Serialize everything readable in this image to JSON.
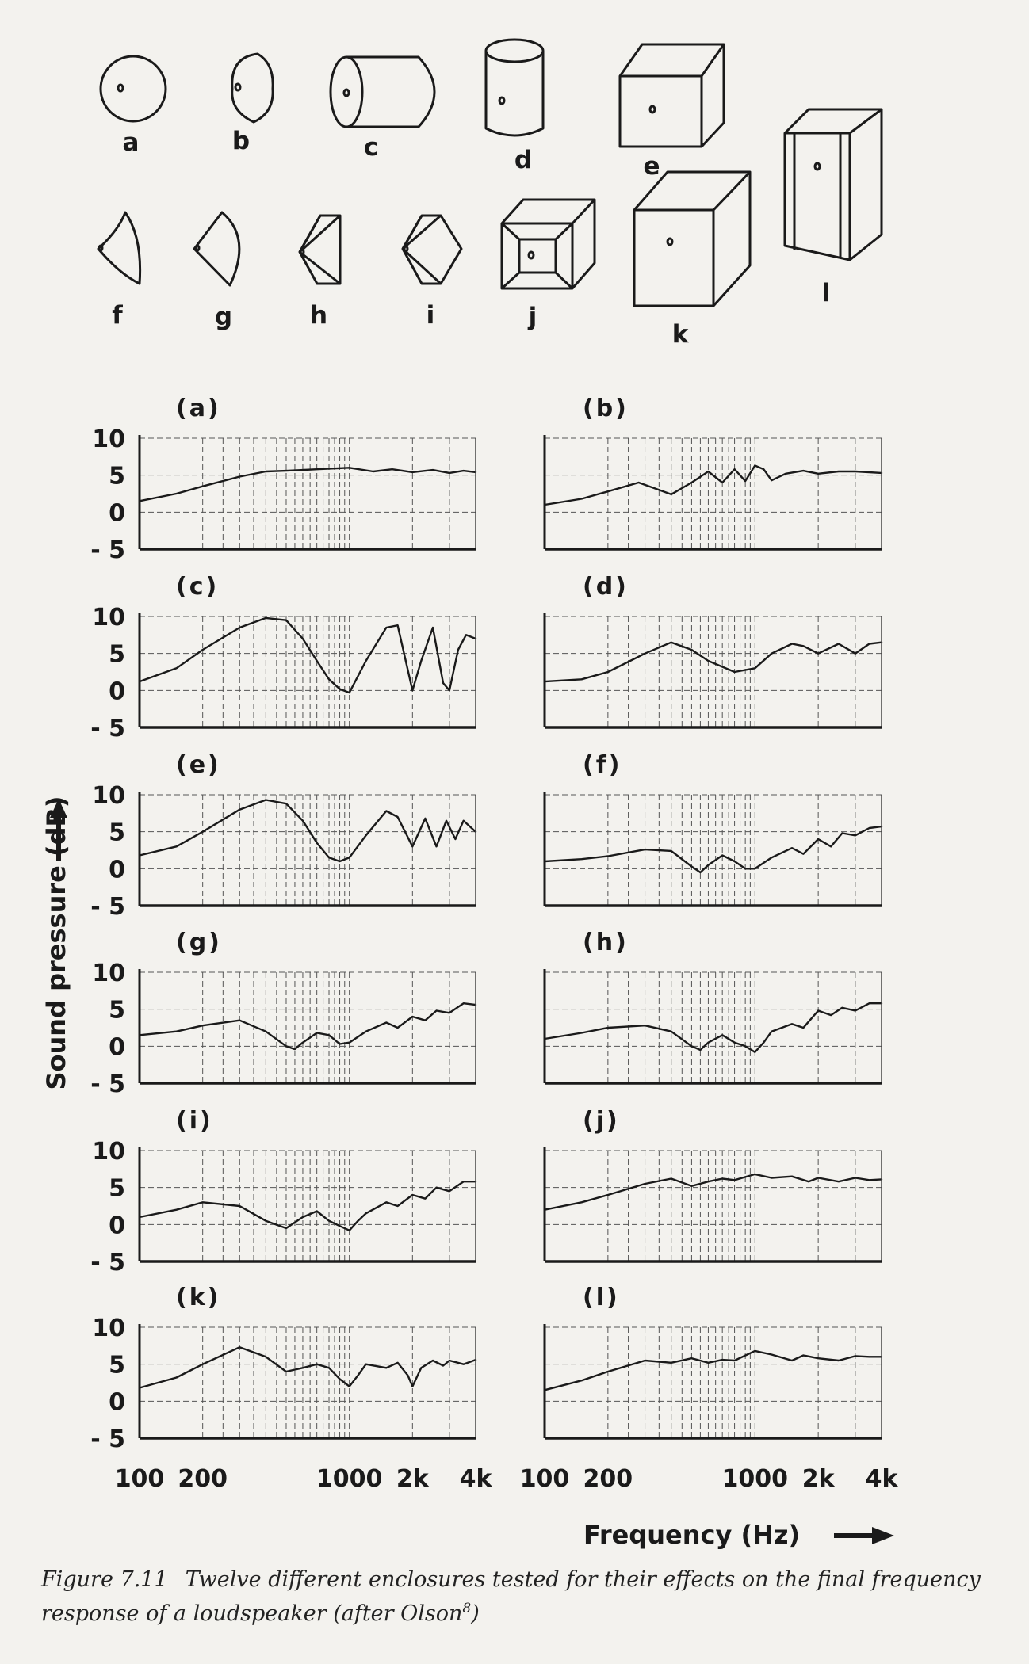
{
  "enclosure_letters": [
    "a",
    "b",
    "c",
    "d",
    "e",
    "f",
    "g",
    "h",
    "i",
    "j",
    "k",
    "l"
  ],
  "y_axis_label": "Sound pressure (dB)",
  "x_axis_label": "Frequency (Hz)",
  "caption": {
    "fignum": "Figure 7.11",
    "text": "Twelve different enclosures tested for their effects on the final frequency response of a loudspeaker (after Olson",
    "ref": "8",
    "close": ")"
  },
  "chart_data": {
    "type": "line",
    "x_scale": "log",
    "xlim": [
      100,
      4000
    ],
    "ylim": [
      -5,
      10
    ],
    "y_ticks": [
      "10",
      "5",
      "0",
      "- 5"
    ],
    "x_ticks": [
      {
        "v": 100,
        "label": "100"
      },
      {
        "v": 200,
        "label": "200"
      },
      {
        "v": 1000,
        "label": "1000"
      },
      {
        "v": 2000,
        "label": "2k"
      },
      {
        "v": 4000,
        "label": "4k"
      }
    ],
    "panels": [
      {
        "label": "(a)",
        "x": [
          100,
          150,
          200,
          300,
          400,
          500,
          700,
          1000,
          1300,
          1600,
          2000,
          2500,
          3000,
          3500,
          4000
        ],
        "y": [
          1.5,
          2.5,
          3.5,
          4.8,
          5.5,
          5.6,
          5.8,
          6.0,
          5.5,
          5.8,
          5.4,
          5.7,
          5.3,
          5.6,
          5.4
        ]
      },
      {
        "label": "(b)",
        "x": [
          100,
          150,
          200,
          280,
          350,
          400,
          500,
          600,
          700,
          800,
          900,
          1000,
          1100,
          1200,
          1400,
          1700,
          2000,
          2500,
          3000,
          4000
        ],
        "y": [
          1.0,
          1.8,
          2.8,
          4.0,
          3.0,
          2.4,
          4.0,
          5.5,
          4.0,
          5.8,
          4.2,
          6.3,
          5.8,
          4.3,
          5.2,
          5.6,
          5.2,
          5.5,
          5.5,
          5.3
        ]
      },
      {
        "label": "(c)",
        "x": [
          100,
          150,
          200,
          300,
          400,
          500,
          600,
          700,
          800,
          900,
          1000,
          1200,
          1500,
          1700,
          2000,
          2200,
          2500,
          2800,
          3000,
          3300,
          3600,
          4000
        ],
        "y": [
          1.2,
          3.0,
          5.5,
          8.5,
          9.8,
          9.5,
          7.0,
          4.0,
          1.5,
          0.2,
          -0.3,
          4.0,
          8.5,
          8.8,
          0.0,
          4.0,
          8.5,
          1.0,
          0.0,
          5.5,
          7.5,
          7.0
        ]
      },
      {
        "label": "(d)",
        "x": [
          100,
          150,
          200,
          300,
          400,
          500,
          600,
          800,
          1000,
          1200,
          1500,
          1700,
          2000,
          2500,
          3000,
          3500,
          4000
        ],
        "y": [
          1.2,
          1.5,
          2.5,
          5.0,
          6.5,
          5.5,
          4.0,
          2.5,
          3.0,
          5.0,
          6.3,
          6.0,
          5.0,
          6.3,
          5.0,
          6.3,
          6.5
        ]
      },
      {
        "label": "(e)",
        "x": [
          100,
          150,
          200,
          300,
          400,
          500,
          600,
          700,
          800,
          900,
          1000,
          1200,
          1500,
          1700,
          2000,
          2300,
          2600,
          2900,
          3200,
          3500,
          4000
        ],
        "y": [
          1.8,
          3.0,
          5.0,
          8.0,
          9.3,
          8.8,
          6.5,
          3.5,
          1.5,
          1.0,
          1.5,
          4.5,
          7.8,
          7.0,
          3.0,
          6.8,
          3.0,
          6.5,
          4.0,
          6.5,
          5.0
        ]
      },
      {
        "label": "(f)",
        "x": [
          100,
          150,
          200,
          300,
          400,
          500,
          550,
          600,
          700,
          800,
          900,
          1000,
          1200,
          1500,
          1700,
          2000,
          2300,
          2600,
          3000,
          3500,
          4000
        ],
        "y": [
          1.0,
          1.3,
          1.7,
          2.6,
          2.4,
          0.3,
          -0.5,
          0.5,
          1.8,
          1.0,
          0.0,
          0.0,
          1.5,
          2.8,
          2.0,
          4.0,
          3.0,
          4.8,
          4.5,
          5.5,
          5.7
        ]
      },
      {
        "label": "(g)",
        "x": [
          100,
          150,
          200,
          300,
          400,
          500,
          550,
          600,
          700,
          800,
          900,
          1000,
          1200,
          1500,
          1700,
          2000,
          2300,
          2600,
          3000,
          3500,
          4000
        ],
        "y": [
          1.5,
          2.0,
          2.8,
          3.5,
          2.0,
          0.0,
          -0.4,
          0.5,
          1.8,
          1.5,
          0.3,
          0.5,
          2.0,
          3.2,
          2.5,
          4.0,
          3.5,
          4.8,
          4.5,
          5.8,
          5.6
        ]
      },
      {
        "label": "(h)",
        "x": [
          100,
          150,
          200,
          300,
          400,
          500,
          550,
          600,
          700,
          800,
          900,
          1000,
          1100,
          1200,
          1500,
          1700,
          2000,
          2300,
          2600,
          3000,
          3500,
          4000
        ],
        "y": [
          1.0,
          1.8,
          2.5,
          2.8,
          2.0,
          0.0,
          -0.5,
          0.5,
          1.5,
          0.5,
          0.0,
          -0.8,
          0.5,
          2.0,
          3.0,
          2.5,
          4.8,
          4.2,
          5.2,
          4.8,
          5.8,
          5.8
        ]
      },
      {
        "label": "(i)",
        "x": [
          100,
          150,
          200,
          300,
          400,
          500,
          600,
          700,
          800,
          900,
          1000,
          1100,
          1200,
          1500,
          1700,
          2000,
          2300,
          2600,
          3000,
          3500,
          4000
        ],
        "y": [
          1.0,
          2.0,
          3.0,
          2.5,
          0.5,
          -0.5,
          1.0,
          1.8,
          0.5,
          -0.2,
          -0.8,
          0.5,
          1.5,
          3.0,
          2.5,
          4.0,
          3.5,
          5.0,
          4.5,
          5.8,
          5.8
        ]
      },
      {
        "label": "(j)",
        "x": [
          100,
          150,
          200,
          300,
          400,
          500,
          600,
          700,
          800,
          1000,
          1200,
          1500,
          1800,
          2000,
          2500,
          3000,
          3500,
          4000
        ],
        "y": [
          2.0,
          3.0,
          4.0,
          5.5,
          6.2,
          5.2,
          5.8,
          6.2,
          6.0,
          6.8,
          6.3,
          6.5,
          5.8,
          6.3,
          5.8,
          6.3,
          6.0,
          6.1
        ]
      },
      {
        "label": "(k)",
        "x": [
          100,
          150,
          200,
          300,
          400,
          500,
          600,
          700,
          800,
          900,
          1000,
          1100,
          1200,
          1500,
          1700,
          1900,
          2000,
          2200,
          2500,
          2800,
          3000,
          3500,
          4000
        ],
        "y": [
          1.8,
          3.2,
          5.0,
          7.3,
          6.0,
          4.0,
          4.5,
          5.0,
          4.5,
          3.0,
          2.0,
          3.5,
          5.0,
          4.5,
          5.2,
          3.5,
          2.0,
          4.5,
          5.5,
          4.8,
          5.5,
          5.0,
          5.6
        ]
      },
      {
        "label": "(l)",
        "x": [
          100,
          150,
          200,
          300,
          400,
          500,
          600,
          700,
          800,
          1000,
          1200,
          1500,
          1700,
          2000,
          2500,
          3000,
          3500,
          4000
        ],
        "y": [
          1.5,
          2.8,
          4.0,
          5.5,
          5.2,
          5.8,
          5.2,
          5.6,
          5.5,
          6.8,
          6.3,
          5.5,
          6.2,
          5.8,
          5.5,
          6.1,
          6.0,
          6.0
        ]
      }
    ]
  }
}
